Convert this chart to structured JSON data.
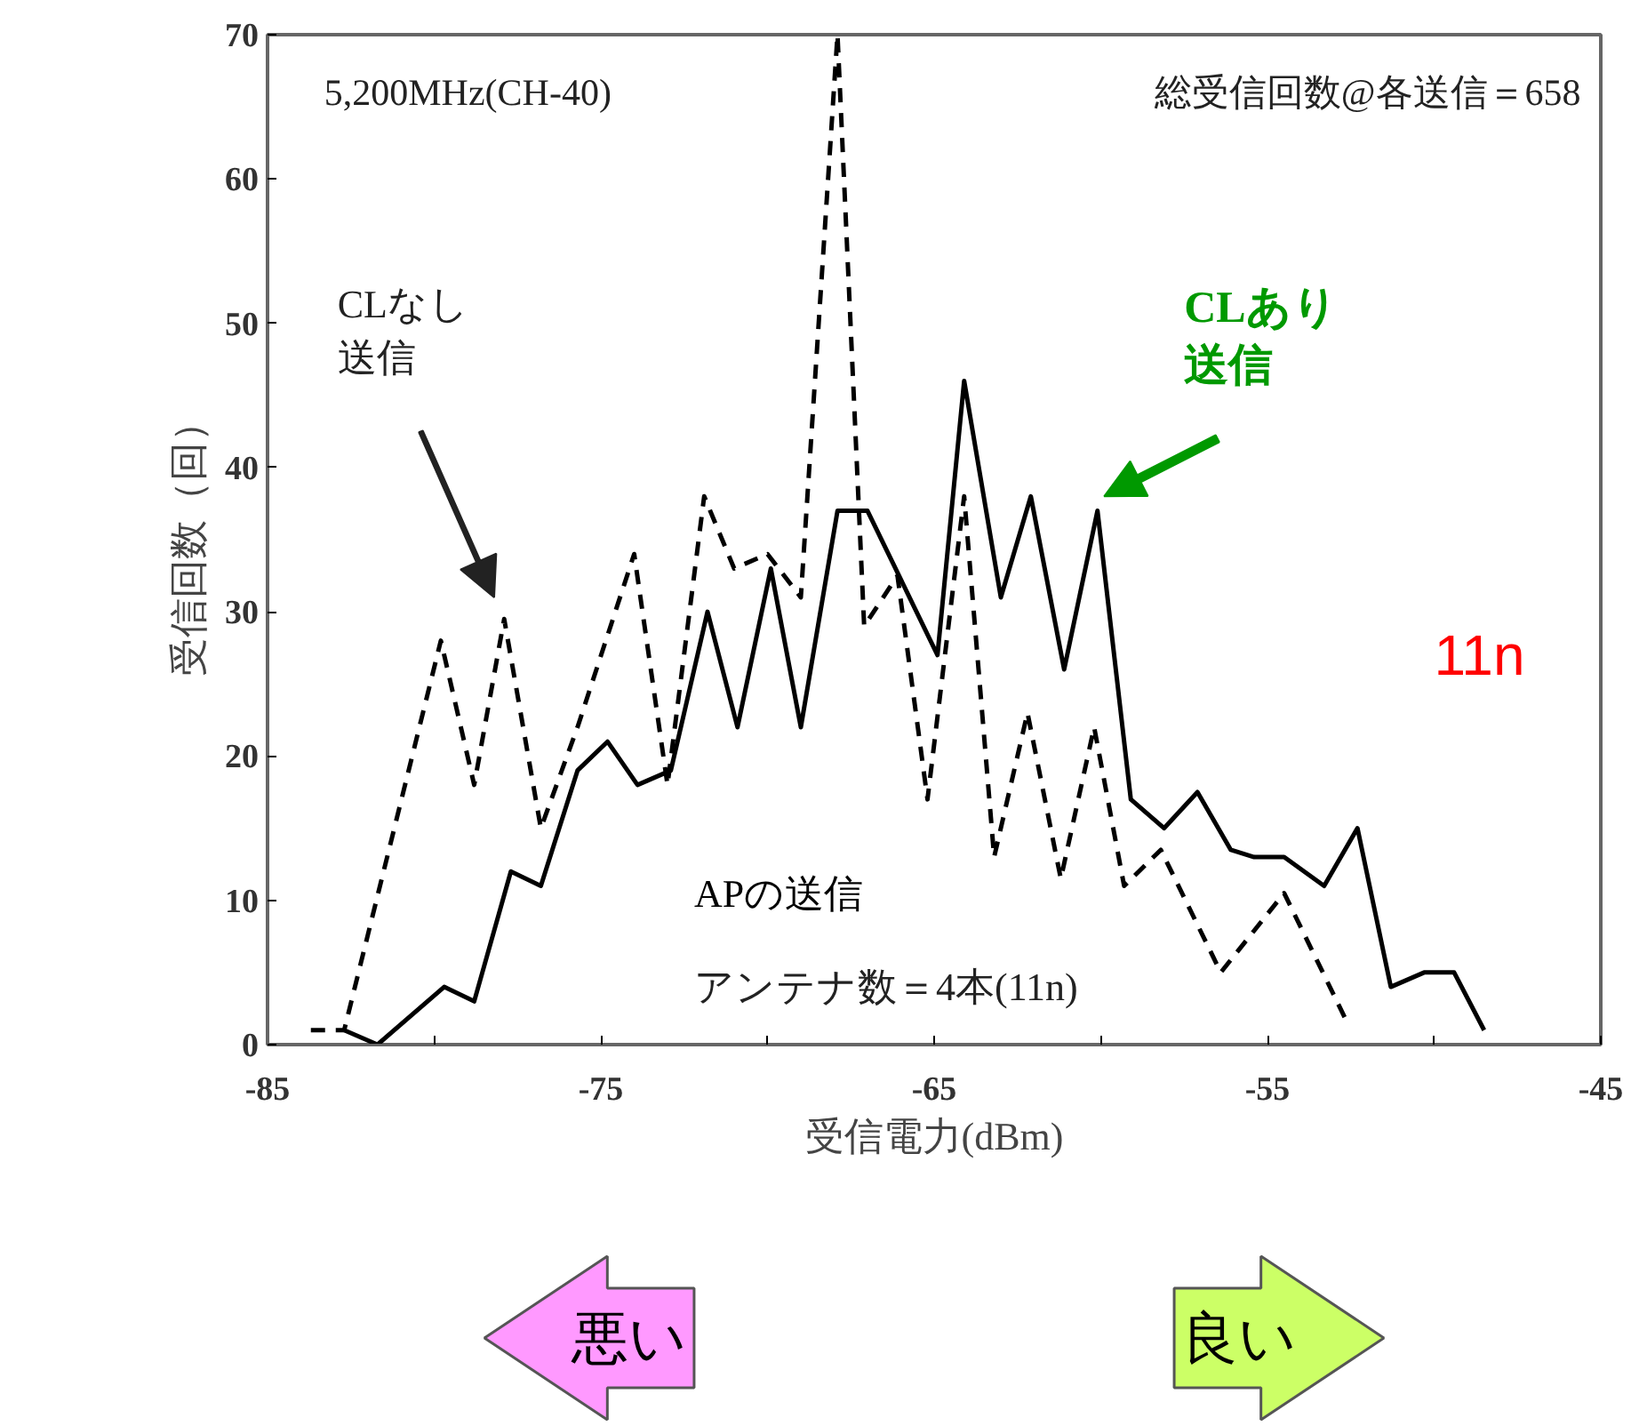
{
  "chart_data": {
    "type": "line",
    "xlabel": "受信電力(dBm)",
    "ylabel": "受信回数（回）",
    "xlim": [
      -85,
      -45
    ],
    "xticks": [
      -85,
      {
        "value": -80,
        "label": null
      },
      -75,
      {
        "value": -70,
        "label": null
      },
      -65,
      {
        "value": -60,
        "label": null
      },
      -55,
      {
        "value": -50,
        "label": null
      },
      -45
    ],
    "ylim": [
      0,
      70
    ],
    "yticks": [
      0,
      10,
      20,
      30,
      40,
      50,
      60,
      70
    ],
    "grid": false,
    "marker": "none",
    "series": [
      {
        "color": "#000000",
        "line_style": "dashed",
        "x": [
          -83.7,
          -82.7,
          -79.8,
          -78.8,
          -77.9,
          -76.8,
          -75.7,
          -74.0,
          -73.0,
          -71.9,
          -71.0,
          -70.0,
          -69.0,
          -67.9,
          -67.1,
          -66.1,
          -65.2,
          -64.1,
          -63.2,
          -62.2,
          -61.2,
          -60.2,
          -59.3,
          -58.2,
          -56.4,
          -54.5,
          -52.6
        ],
        "values": [
          1,
          1,
          28,
          18,
          29.5,
          15,
          22,
          34,
          18,
          38,
          33,
          34,
          31,
          70,
          29,
          32.5,
          17,
          38,
          13,
          23,
          11.5,
          22,
          11,
          13.5,
          5,
          10.5,
          1.5
        ]
      },
      {
        "color": "#000000",
        "line_style": "solid",
        "x": [
          -82.7,
          -81.7,
          -79.7,
          -78.8,
          -77.7,
          -76.8,
          -75.7,
          -74.8,
          -73.9,
          -72.9,
          -71.8,
          -70.9,
          -69.9,
          -69.0,
          -67.9,
          -67.0,
          -64.9,
          -64.1,
          -63.0,
          -62.1,
          -61.1,
          -60.1,
          -59.1,
          -58.1,
          -57.1,
          -56.1,
          -55.4,
          -54.5,
          -53.3,
          -52.3,
          -51.3,
          -50.3,
          -49.4,
          -48.5
        ],
        "values": [
          1,
          0,
          4,
          3,
          12,
          11,
          19,
          21,
          18,
          19,
          30,
          22,
          33,
          22,
          37,
          37,
          27,
          46,
          31,
          38,
          26,
          37,
          17,
          15,
          17.5,
          13.5,
          13,
          13,
          11,
          15,
          4,
          5,
          5,
          1
        ]
      }
    ],
    "annotations": [
      "5,200MHz(CH-40)",
      "総受信回数@各送信＝658",
      "CLなし送信",
      "CLあり送信",
      "11n",
      "APの送信",
      "アンテナ数＝4本(11n)",
      "悪い",
      "良い"
    ]
  }
}
